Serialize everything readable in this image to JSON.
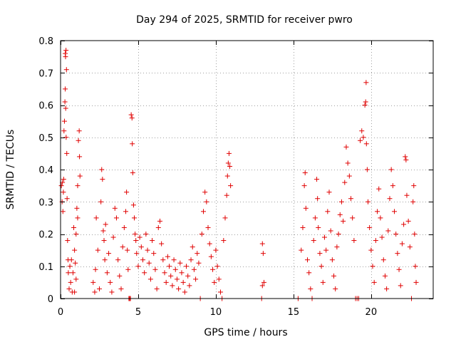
{
  "chart_data": {
    "type": "scatter",
    "title": "Day 294 of 2025, SRMTID for receiver pwro",
    "xlabel": "GPS time / hours",
    "ylabel": "SRMTID / TECUs",
    "xlim": [
      0,
      24
    ],
    "ylim": [
      0,
      0.8
    ],
    "xticks": [
      0,
      5,
      10,
      15,
      20
    ],
    "xtick_labels": [
      "0",
      "5",
      "10",
      "15",
      "20"
    ],
    "yticks": [
      0,
      0.1,
      0.2,
      0.3,
      0.4,
      0.5,
      0.6,
      0.7,
      0.8
    ],
    "ytick_labels": [
      "0",
      "0.1",
      "0.2",
      "0.3",
      "0.4",
      "0.5",
      "0.6",
      "0.7",
      "0.8"
    ],
    "grid": true,
    "marker": "+",
    "color": "#e00000",
    "series": [
      {
        "name": "SRMTID",
        "points": [
          [
            0.05,
            0.35
          ],
          [
            0.1,
            0.3
          ],
          [
            0.12,
            0.36
          ],
          [
            0.15,
            0.27
          ],
          [
            0.18,
            0.33
          ],
          [
            0.2,
            0.37
          ],
          [
            0.22,
            0.52
          ],
          [
            0.25,
            0.55
          ],
          [
            0.28,
            0.61
          ],
          [
            0.3,
            0.76
          ],
          [
            0.32,
            0.75
          ],
          [
            0.35,
            0.77
          ],
          [
            0.38,
            0.71
          ],
          [
            0.3,
            0.65
          ],
          [
            0.33,
            0.59
          ],
          [
            0.36,
            0.5
          ],
          [
            0.4,
            0.45
          ],
          [
            0.42,
            0.31
          ],
          [
            0.45,
            0.18
          ],
          [
            0.48,
            0.12
          ],
          [
            0.5,
            0.08
          ],
          [
            0.55,
            0.03
          ],
          [
            0.6,
            0.1
          ],
          [
            0.65,
            0.05
          ],
          [
            0.7,
            0.12
          ],
          [
            0.75,
            0.02
          ],
          [
            0.8,
            0.08
          ],
          [
            0.85,
            0.22
          ],
          [
            0.9,
            0.15
          ],
          [
            0.95,
            0.11
          ],
          [
            1.0,
            0.06
          ],
          [
            1.05,
            0.28
          ],
          [
            1.1,
            0.25
          ],
          [
            1.15,
            0.49
          ],
          [
            1.2,
            0.52
          ],
          [
            1.22,
            0.44
          ],
          [
            1.25,
            0.38
          ],
          [
            1.1,
            0.35
          ],
          [
            1.0,
            0.2
          ],
          [
            0.9,
            0.02
          ],
          [
            2.1,
            0.05
          ],
          [
            2.2,
            0.02
          ],
          [
            2.25,
            0.09
          ],
          [
            2.3,
            0.25
          ],
          [
            2.4,
            0.15
          ],
          [
            2.5,
            0.03
          ],
          [
            2.6,
            0.3
          ],
          [
            2.65,
            0.4
          ],
          [
            2.7,
            0.37
          ],
          [
            2.75,
            0.21
          ],
          [
            2.8,
            0.18
          ],
          [
            2.85,
            0.12
          ],
          [
            2.9,
            0.23
          ],
          [
            3.0,
            0.08
          ],
          [
            3.1,
            0.14
          ],
          [
            3.2,
            0.05
          ],
          [
            3.3,
            0.02
          ],
          [
            3.4,
            0.19
          ],
          [
            3.5,
            0.28
          ],
          [
            3.6,
            0.25
          ],
          [
            3.7,
            0.12
          ],
          [
            3.8,
            0.07
          ],
          [
            3.9,
            0.03
          ],
          [
            4.0,
            0.16
          ],
          [
            4.1,
            0.22
          ],
          [
            4.2,
            0.27
          ],
          [
            4.25,
            0.33
          ],
          [
            4.3,
            0.15
          ],
          [
            4.35,
            0.09
          ],
          [
            4.4,
            0.0
          ],
          [
            4.45,
            0.0
          ],
          [
            4.5,
            0.0
          ],
          [
            4.55,
            0.57
          ],
          [
            4.6,
            0.56
          ],
          [
            4.62,
            0.48
          ],
          [
            4.65,
            0.39
          ],
          [
            4.7,
            0.29
          ],
          [
            4.75,
            0.25
          ],
          [
            4.8,
            0.2
          ],
          [
            4.85,
            0.18
          ],
          [
            4.9,
            0.14
          ],
          [
            5.0,
            0.1
          ],
          [
            5.1,
            0.19
          ],
          [
            5.2,
            0.16
          ],
          [
            5.3,
            0.12
          ],
          [
            5.4,
            0.08
          ],
          [
            5.5,
            0.2
          ],
          [
            5.6,
            0.15
          ],
          [
            5.7,
            0.11
          ],
          [
            5.8,
            0.06
          ],
          [
            5.9,
            0.18
          ],
          [
            6.0,
            0.14
          ],
          [
            6.1,
            0.09
          ],
          [
            6.2,
            0.03
          ],
          [
            6.3,
            0.22
          ],
          [
            6.4,
            0.24
          ],
          [
            6.5,
            0.17
          ],
          [
            6.6,
            0.12
          ],
          [
            6.7,
            0.08
          ],
          [
            6.8,
            0.05
          ],
          [
            6.9,
            0.13
          ],
          [
            7.0,
            0.1
          ],
          [
            7.1,
            0.07
          ],
          [
            7.2,
            0.04
          ],
          [
            7.3,
            0.12
          ],
          [
            7.4,
            0.09
          ],
          [
            7.5,
            0.06
          ],
          [
            7.6,
            0.03
          ],
          [
            7.7,
            0.11
          ],
          [
            7.8,
            0.08
          ],
          [
            7.9,
            0.05
          ],
          [
            8.0,
            0.02
          ],
          [
            8.1,
            0.1
          ],
          [
            8.2,
            0.07
          ],
          [
            8.3,
            0.04
          ],
          [
            8.4,
            0.12
          ],
          [
            8.5,
            0.16
          ],
          [
            8.6,
            0.09
          ],
          [
            8.7,
            0.06
          ],
          [
            8.8,
            0.14
          ],
          [
            8.9,
            0.11
          ],
          [
            9.0,
            0.0
          ],
          [
            9.1,
            0.2
          ],
          [
            9.2,
            0.27
          ],
          [
            9.3,
            0.33
          ],
          [
            9.4,
            0.3
          ],
          [
            9.5,
            0.22
          ],
          [
            9.6,
            0.17
          ],
          [
            9.7,
            0.13
          ],
          [
            9.8,
            0.09
          ],
          [
            9.9,
            0.05
          ],
          [
            10.0,
            0.15
          ],
          [
            10.1,
            0.1
          ],
          [
            10.2,
            0.06
          ],
          [
            10.3,
            0.02
          ],
          [
            10.4,
            0.0
          ],
          [
            10.5,
            0.18
          ],
          [
            10.6,
            0.25
          ],
          [
            10.7,
            0.32
          ],
          [
            10.75,
            0.38
          ],
          [
            10.8,
            0.42
          ],
          [
            10.85,
            0.45
          ],
          [
            10.9,
            0.41
          ],
          [
            10.95,
            0.35
          ],
          [
            13.0,
            0.17
          ],
          [
            13.05,
            0.14
          ],
          [
            13.1,
            0.05
          ],
          [
            13.0,
            0.04
          ],
          [
            12.95,
            0.0
          ],
          [
            15.3,
            0.0
          ],
          [
            15.5,
            0.15
          ],
          [
            15.6,
            0.22
          ],
          [
            15.7,
            0.35
          ],
          [
            15.75,
            0.39
          ],
          [
            15.8,
            0.28
          ],
          [
            15.9,
            0.12
          ],
          [
            16.0,
            0.08
          ],
          [
            16.1,
            0.03
          ],
          [
            16.2,
            0.0
          ],
          [
            16.3,
            0.18
          ],
          [
            16.4,
            0.25
          ],
          [
            16.5,
            0.37
          ],
          [
            16.55,
            0.31
          ],
          [
            16.6,
            0.22
          ],
          [
            16.7,
            0.14
          ],
          [
            16.8,
            0.1
          ],
          [
            16.9,
            0.05
          ],
          [
            17.0,
            0.19
          ],
          [
            17.1,
            0.15
          ],
          [
            17.2,
            0.27
          ],
          [
            17.3,
            0.33
          ],
          [
            17.4,
            0.21
          ],
          [
            17.5,
            0.12
          ],
          [
            17.6,
            0.07
          ],
          [
            17.7,
            0.03
          ],
          [
            17.8,
            0.16
          ],
          [
            17.9,
            0.2
          ],
          [
            18.0,
            0.26
          ],
          [
            18.1,
            0.3
          ],
          [
            18.2,
            0.24
          ],
          [
            18.3,
            0.36
          ],
          [
            18.4,
            0.47
          ],
          [
            18.5,
            0.42
          ],
          [
            18.6,
            0.38
          ],
          [
            18.7,
            0.31
          ],
          [
            18.8,
            0.25
          ],
          [
            18.9,
            0.18
          ],
          [
            19.0,
            0.0
          ],
          [
            19.1,
            0.0
          ],
          [
            19.2,
            0.0
          ],
          [
            19.3,
            0.49
          ],
          [
            19.4,
            0.52
          ],
          [
            19.5,
            0.5
          ],
          [
            19.6,
            0.6
          ],
          [
            19.65,
            0.61
          ],
          [
            19.68,
            0.67
          ],
          [
            19.7,
            0.48
          ],
          [
            19.75,
            0.4
          ],
          [
            19.8,
            0.3
          ],
          [
            19.9,
            0.22
          ],
          [
            20.0,
            0.15
          ],
          [
            20.1,
            0.1
          ],
          [
            20.2,
            0.05
          ],
          [
            20.3,
            0.18
          ],
          [
            20.4,
            0.27
          ],
          [
            20.5,
            0.34
          ],
          [
            20.6,
            0.25
          ],
          [
            20.7,
            0.19
          ],
          [
            20.8,
            0.12
          ],
          [
            20.9,
            0.07
          ],
          [
            21.0,
            0.03
          ],
          [
            21.1,
            0.21
          ],
          [
            21.2,
            0.31
          ],
          [
            21.3,
            0.4
          ],
          [
            21.4,
            0.35
          ],
          [
            21.5,
            0.27
          ],
          [
            21.6,
            0.2
          ],
          [
            21.7,
            0.14
          ],
          [
            21.8,
            0.09
          ],
          [
            21.9,
            0.04
          ],
          [
            22.0,
            0.17
          ],
          [
            22.1,
            0.23
          ],
          [
            22.2,
            0.44
          ],
          [
            22.25,
            0.43
          ],
          [
            22.3,
            0.32
          ],
          [
            22.4,
            0.24
          ],
          [
            22.5,
            0.16
          ],
          [
            22.6,
            0.0
          ],
          [
            22.7,
            0.3
          ],
          [
            22.75,
            0.35
          ],
          [
            22.8,
            0.2
          ],
          [
            22.85,
            0.1
          ],
          [
            22.9,
            0.05
          ]
        ]
      }
    ]
  }
}
